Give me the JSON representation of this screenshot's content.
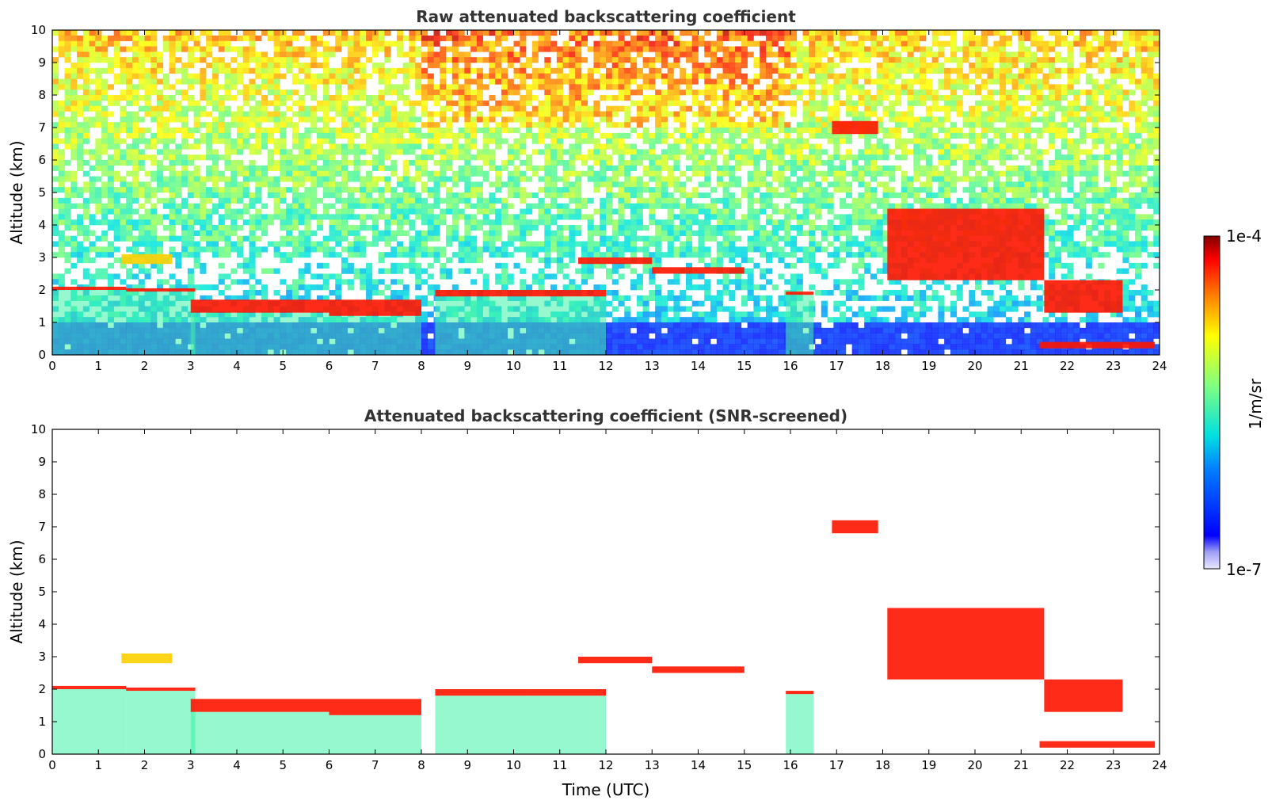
{
  "chart_data": [
    {
      "type": "heatmap",
      "title": "Raw attenuated backscattering coefficient",
      "xlabel": "",
      "ylabel": "Altitude (km)",
      "xlim": [
        0,
        24
      ],
      "ylim": [
        0,
        10
      ],
      "xticks": [
        "0",
        "1",
        "2",
        "3",
        "4",
        "5",
        "6",
        "7",
        "8",
        "9",
        "10",
        "11",
        "12",
        "13",
        "14",
        "15",
        "16",
        "17",
        "18",
        "19",
        "20",
        "21",
        "22",
        "23",
        "24"
      ],
      "yticks": [
        "0",
        "1",
        "2",
        "3",
        "4",
        "5",
        "6",
        "7",
        "8",
        "9",
        "10"
      ],
      "grid": false,
      "background_noise": true,
      "layers": [
        {
          "x": [
            0,
            1.6
          ],
          "y": [
            2.0,
            2.1
          ],
          "level": "high"
        },
        {
          "x": [
            1.6,
            3.1
          ],
          "y": [
            1.95,
            2.05
          ],
          "level": "high"
        },
        {
          "x": [
            1.5,
            2.6
          ],
          "y": [
            2.8,
            3.1
          ],
          "level": "medium"
        },
        {
          "x": [
            3.0,
            6.0
          ],
          "y": [
            1.3,
            1.7
          ],
          "level": "high"
        },
        {
          "x": [
            6.0,
            8.0
          ],
          "y": [
            1.2,
            1.7
          ],
          "level": "high"
        },
        {
          "x": [
            8.3,
            10.3
          ],
          "y": [
            1.8,
            2.0
          ],
          "level": "high"
        },
        {
          "x": [
            10.3,
            12.0
          ],
          "y": [
            1.8,
            2.0
          ],
          "level": "high"
        },
        {
          "x": [
            11.4,
            13.0
          ],
          "y": [
            2.8,
            3.0
          ],
          "level": "high"
        },
        {
          "x": [
            13.0,
            15.0
          ],
          "y": [
            2.5,
            2.7
          ],
          "level": "high"
        },
        {
          "x": [
            15.9,
            16.5
          ],
          "y": [
            1.85,
            1.95
          ],
          "level": "high"
        },
        {
          "x": [
            16.9,
            17.9
          ],
          "y": [
            6.8,
            7.2
          ],
          "level": "high"
        },
        {
          "x": [
            18.1,
            21.5
          ],
          "y": [
            2.3,
            4.5
          ],
          "level": "high"
        },
        {
          "x": [
            21.5,
            23.2
          ],
          "y": [
            1.3,
            2.3
          ],
          "level": "high"
        },
        {
          "x": [
            21.4,
            23.9
          ],
          "y": [
            0.2,
            0.4
          ],
          "level": "high"
        }
      ]
    },
    {
      "type": "heatmap",
      "title": "Attenuated backscattering coefficient (SNR-screened)",
      "xlabel": "Time (UTC)",
      "ylabel": "Altitude (km)",
      "xlim": [
        0,
        24
      ],
      "ylim": [
        0,
        10
      ],
      "xticks": [
        "0",
        "1",
        "2",
        "3",
        "4",
        "5",
        "6",
        "7",
        "8",
        "9",
        "10",
        "11",
        "12",
        "13",
        "14",
        "15",
        "16",
        "17",
        "18",
        "19",
        "20",
        "21",
        "22",
        "23",
        "24"
      ],
      "yticks": [
        "0",
        "1",
        "2",
        "3",
        "4",
        "5",
        "6",
        "7",
        "8",
        "9",
        "10"
      ],
      "grid": false,
      "background_noise": false
    }
  ],
  "colorbar": {
    "label": "1/m/sr",
    "min_label": "1e-7",
    "max_label": "1e-4",
    "colormap": "jet"
  }
}
